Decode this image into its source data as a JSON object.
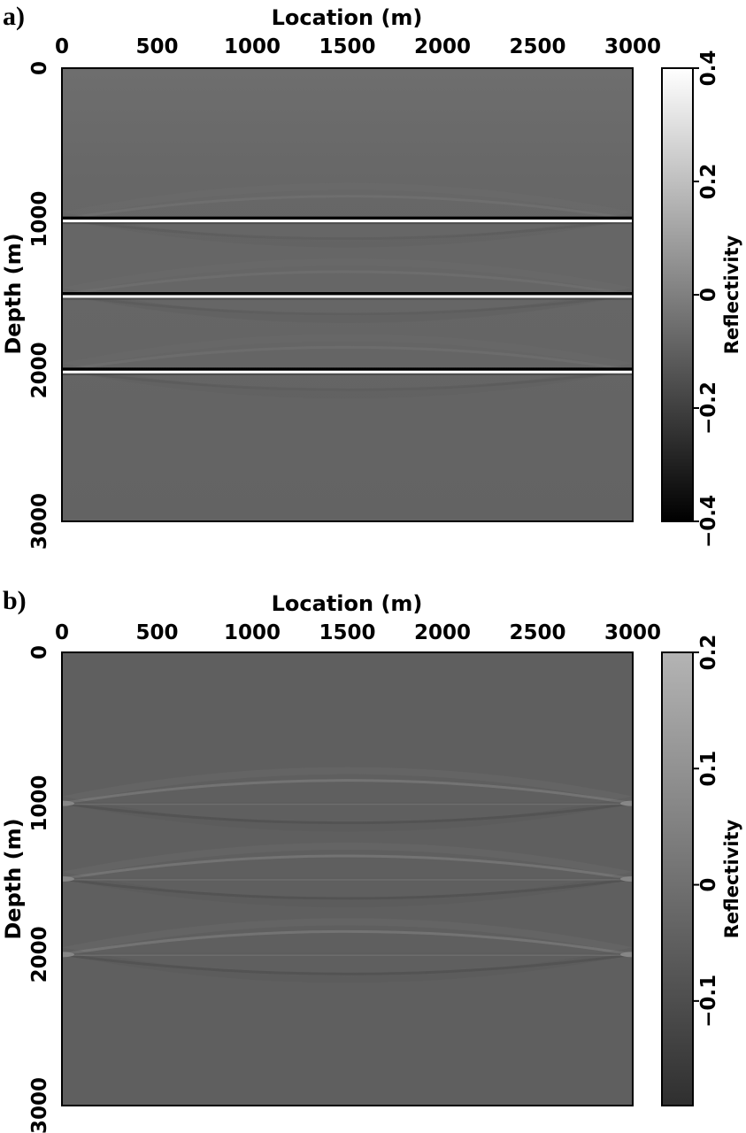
{
  "chart_data": [
    {
      "type": "heatmap",
      "panel_label": "a)",
      "title": "",
      "xlabel": "Location (m)",
      "ylabel": "Depth (m)",
      "xlim": [
        0,
        3000
      ],
      "ylim": [
        0,
        3000
      ],
      "x_ticks": [
        "0",
        "500",
        "1000",
        "1500",
        "2000",
        "2500",
        "3000"
      ],
      "y_ticks": [
        "0",
        "1000",
        "2000",
        "3000"
      ],
      "colorbar": {
        "label": "Reflectivity",
        "range": [
          -0.4,
          0.4
        ],
        "ticks": [
          "0.4",
          "0.2",
          "0",
          "−0.2",
          "−0.4"
        ],
        "colormap": "grayscale"
      },
      "background_value": 0,
      "reflectors": [
        {
          "depth": 1000,
          "peak": 0.4,
          "trough": -0.4
        },
        {
          "depth": 1500,
          "peak": 0.35,
          "trough": -0.4
        },
        {
          "depth": 2000,
          "peak": 0.38,
          "trough": -0.4
        }
      ]
    },
    {
      "type": "heatmap",
      "panel_label": "b)",
      "title": "",
      "xlabel": "Location (m)",
      "ylabel": "Depth (m)",
      "xlim": [
        0,
        3000
      ],
      "ylim": [
        0,
        3000
      ],
      "x_ticks": [
        "0",
        "500",
        "1000",
        "1500",
        "2000",
        "2500",
        "3000"
      ],
      "y_ticks": [
        "0",
        "1000",
        "2000",
        "3000"
      ],
      "colorbar": {
        "label": "Reflectivity",
        "range": [
          -0.19,
          0.2
        ],
        "ticks": [
          "0.2",
          "0.1",
          "0",
          "−0.1"
        ],
        "colormap": "grayscale"
      },
      "background_value": 0,
      "reflectors": [
        {
          "depth": 1000,
          "peak": 0.08,
          "trough": -0.06
        },
        {
          "depth": 1500,
          "peak": 0.08,
          "trough": -0.06
        },
        {
          "depth": 2000,
          "peak": 0.08,
          "trough": -0.06
        }
      ]
    }
  ]
}
